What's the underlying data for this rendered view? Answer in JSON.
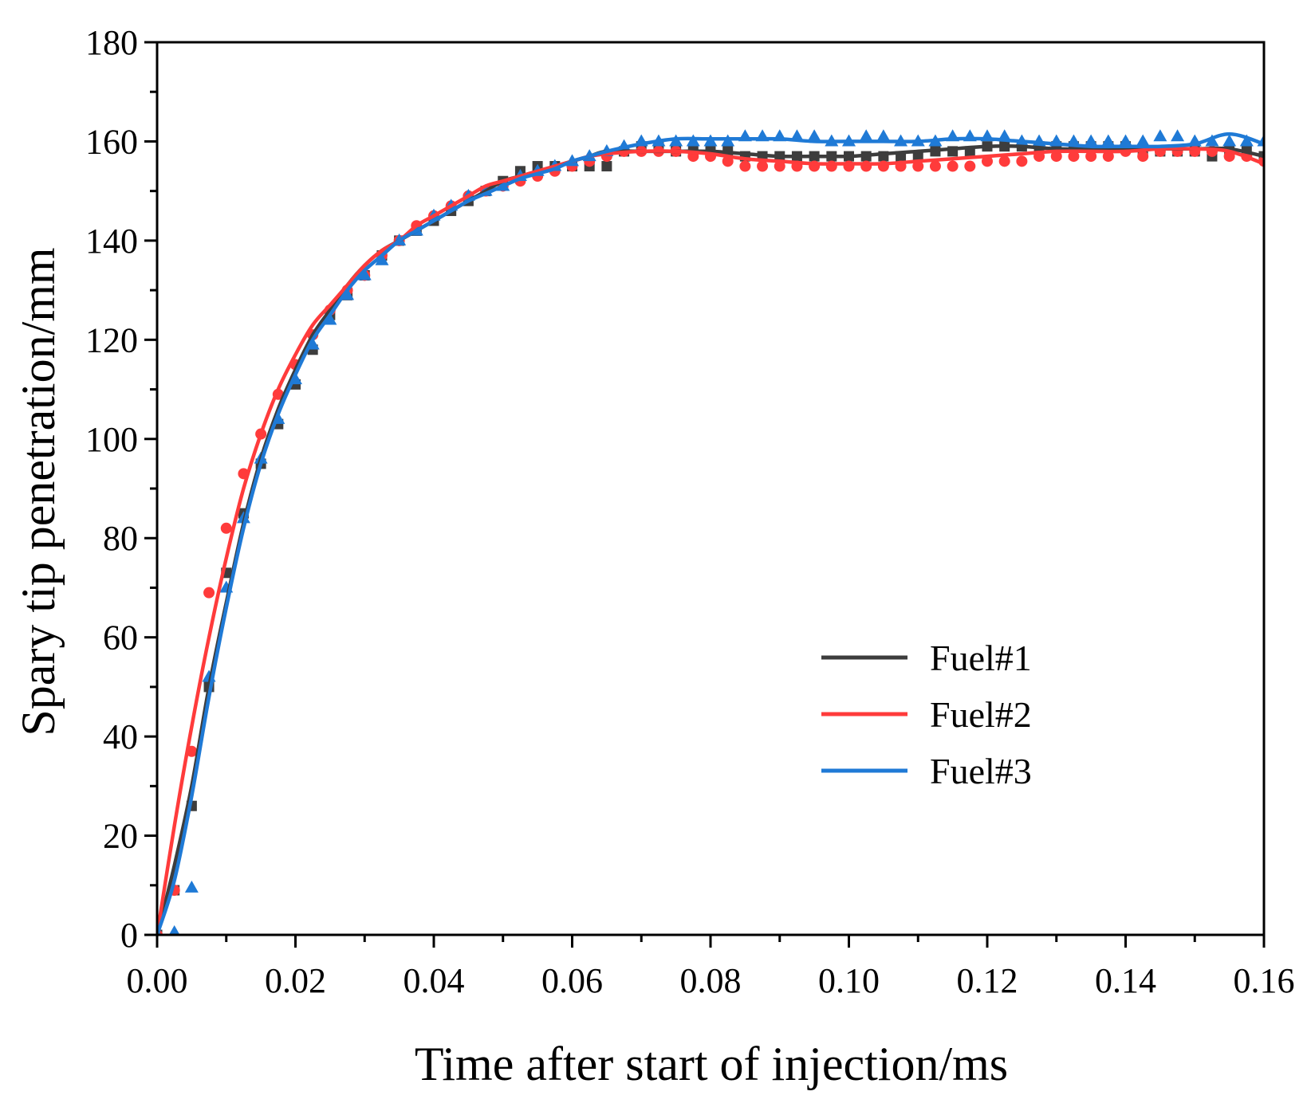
{
  "chart_data": {
    "type": "line",
    "title": "",
    "xlabel": "Time after start of injection/ms",
    "ylabel": "Spary tip penetration/mm",
    "xlim": [
      0,
      0.16
    ],
    "ylim": [
      0,
      180
    ],
    "xticks": [
      "0.00",
      "0.02",
      "0.04",
      "0.06",
      "0.08",
      "0.10",
      "0.12",
      "0.14",
      "0.16"
    ],
    "yticks": [
      "0",
      "20",
      "40",
      "60",
      "80",
      "100",
      "120",
      "140",
      "160",
      "180"
    ],
    "grid": false,
    "legend_position": "center-right",
    "series": [
      {
        "name": "Fuel#1",
        "color": "#3d3d3d",
        "marker": "square",
        "fit_x": [
          0,
          0.0025,
          0.005,
          0.0075,
          0.01,
          0.0125,
          0.015,
          0.0175,
          0.02,
          0.0225,
          0.025,
          0.0275,
          0.03,
          0.0325,
          0.035,
          0.0375,
          0.04,
          0.0425,
          0.045,
          0.0475,
          0.05,
          0.0525,
          0.055,
          0.0575,
          0.06,
          0.0625,
          0.065,
          0.07,
          0.075,
          0.08,
          0.085,
          0.09,
          0.095,
          0.1,
          0.105,
          0.11,
          0.115,
          0.12,
          0.125,
          0.13,
          0.135,
          0.14,
          0.145,
          0.15,
          0.155,
          0.16
        ],
        "fit_y": [
          0,
          14,
          30,
          50,
          67,
          83,
          96,
          106,
          114,
          121,
          126,
          131,
          135,
          138,
          140,
          142,
          144,
          146,
          148,
          150,
          152,
          153,
          154,
          155,
          156,
          157,
          158,
          158,
          158,
          158,
          157.5,
          157,
          157,
          157,
          157.5,
          158,
          158.5,
          159,
          159,
          158.5,
          158.5,
          158.5,
          158.5,
          158.5,
          158.5,
          157
        ],
        "marker_x": [
          0,
          0.0025,
          0.005,
          0.0075,
          0.01,
          0.0125,
          0.015,
          0.0175,
          0.02,
          0.0225,
          0.025,
          0.0275,
          0.03,
          0.0325,
          0.035,
          0.0375,
          0.04,
          0.0425,
          0.045,
          0.0475,
          0.05,
          0.0525,
          0.055,
          0.0575,
          0.06,
          0.0625,
          0.065,
          0.0675,
          0.07,
          0.0725,
          0.075,
          0.0775,
          0.08,
          0.0825,
          0.085,
          0.0875,
          0.09,
          0.0925,
          0.095,
          0.0975,
          0.1,
          0.1025,
          0.105,
          0.1075,
          0.11,
          0.1125,
          0.115,
          0.1175,
          0.12,
          0.1225,
          0.125,
          0.1275,
          0.13,
          0.1325,
          0.135,
          0.1375,
          0.14,
          0.1425,
          0.145,
          0.1475,
          0.15,
          0.1525,
          0.155,
          0.1575,
          0.16
        ],
        "marker_y": [
          0,
          9,
          26,
          50,
          73,
          85,
          95,
          103,
          111,
          118,
          125,
          129,
          133,
          137,
          140,
          142,
          144,
          146,
          148,
          150,
          152,
          154,
          155,
          155,
          155,
          155,
          155,
          158,
          159,
          159,
          158,
          158,
          158,
          158,
          157,
          157,
          157,
          157,
          157,
          157,
          157,
          157,
          157,
          157,
          157,
          158,
          158,
          158,
          159,
          159,
          159,
          159,
          159,
          159,
          159,
          159,
          159,
          158,
          158,
          158,
          158,
          157,
          158,
          158,
          157
        ]
      },
      {
        "name": "Fuel#2",
        "color": "#ff3b3b",
        "marker": "circle",
        "fit_x": [
          0,
          0.0025,
          0.005,
          0.0075,
          0.01,
          0.0125,
          0.015,
          0.0175,
          0.02,
          0.0225,
          0.025,
          0.0275,
          0.03,
          0.0325,
          0.035,
          0.0375,
          0.04,
          0.0425,
          0.045,
          0.0475,
          0.05,
          0.0525,
          0.055,
          0.0575,
          0.06,
          0.0625,
          0.065,
          0.07,
          0.075,
          0.08,
          0.085,
          0.09,
          0.095,
          0.1,
          0.105,
          0.11,
          0.115,
          0.12,
          0.125,
          0.13,
          0.135,
          0.14,
          0.145,
          0.15,
          0.155,
          0.16
        ],
        "fit_y": [
          0,
          22,
          42,
          60,
          76,
          90,
          101,
          110,
          117,
          123,
          127,
          131,
          135,
          138,
          140,
          143,
          145,
          147,
          149,
          151,
          152,
          153,
          154,
          155,
          156,
          157,
          157.5,
          158,
          158,
          157.5,
          156.5,
          156,
          155.5,
          155.5,
          155.5,
          156,
          156.5,
          157,
          157.5,
          158,
          158,
          158,
          158.5,
          158.5,
          158,
          155.5
        ],
        "marker_x": [
          0,
          0.0025,
          0.005,
          0.0075,
          0.01,
          0.0125,
          0.015,
          0.0175,
          0.02,
          0.0225,
          0.025,
          0.0275,
          0.03,
          0.0325,
          0.035,
          0.0375,
          0.04,
          0.0425,
          0.045,
          0.0475,
          0.05,
          0.0525,
          0.055,
          0.0575,
          0.06,
          0.0625,
          0.065,
          0.0675,
          0.07,
          0.0725,
          0.075,
          0.0775,
          0.08,
          0.0825,
          0.085,
          0.0875,
          0.09,
          0.0925,
          0.095,
          0.0975,
          0.1,
          0.1025,
          0.105,
          0.1075,
          0.11,
          0.1125,
          0.115,
          0.1175,
          0.12,
          0.1225,
          0.125,
          0.1275,
          0.13,
          0.1325,
          0.135,
          0.1375,
          0.14,
          0.1425,
          0.145,
          0.1475,
          0.15,
          0.1525,
          0.155,
          0.1575,
          0.16
        ],
        "marker_y": [
          0,
          9,
          37,
          69,
          82,
          93,
          101,
          109,
          115,
          121,
          126,
          130,
          133,
          137,
          140,
          143,
          145,
          147,
          149,
          150,
          151,
          152,
          153,
          154,
          155,
          156,
          157,
          158,
          158,
          158,
          158,
          157,
          157,
          156,
          155,
          155,
          155,
          155,
          155,
          155,
          155,
          155,
          155,
          155,
          155,
          155,
          155,
          155,
          156,
          156,
          156,
          157,
          157,
          157,
          157,
          157,
          158,
          157,
          158,
          158,
          158,
          158,
          157,
          157,
          156
        ]
      },
      {
        "name": "Fuel#3",
        "color": "#1f7ad6",
        "marker": "triangle",
        "fit_x": [
          0,
          0.0025,
          0.005,
          0.0075,
          0.01,
          0.0125,
          0.015,
          0.0175,
          0.02,
          0.0225,
          0.025,
          0.0275,
          0.03,
          0.0325,
          0.035,
          0.0375,
          0.04,
          0.0425,
          0.045,
          0.0475,
          0.05,
          0.0525,
          0.055,
          0.0575,
          0.06,
          0.0625,
          0.065,
          0.07,
          0.075,
          0.08,
          0.085,
          0.09,
          0.095,
          0.1,
          0.105,
          0.11,
          0.115,
          0.12,
          0.125,
          0.13,
          0.135,
          0.14,
          0.145,
          0.15,
          0.155,
          0.16
        ],
        "fit_y": [
          0,
          11,
          28,
          48,
          66,
          82,
          95,
          105,
          113,
          120,
          125,
          130,
          134,
          137,
          140,
          142,
          144,
          146,
          148,
          149.5,
          151,
          152.5,
          153.5,
          154.5,
          156,
          157,
          158,
          159.5,
          160.5,
          160.5,
          160.5,
          160.5,
          160,
          160,
          160,
          160,
          160.5,
          160.5,
          160,
          159.5,
          159,
          159,
          159,
          159.5,
          161.5,
          159.5
        ],
        "marker_x": [
          0,
          0.0025,
          0.005,
          0.0075,
          0.01,
          0.0125,
          0.015,
          0.0175,
          0.02,
          0.0225,
          0.025,
          0.0275,
          0.03,
          0.0325,
          0.035,
          0.0375,
          0.04,
          0.0425,
          0.045,
          0.0475,
          0.05,
          0.0525,
          0.055,
          0.0575,
          0.06,
          0.0625,
          0.065,
          0.0675,
          0.07,
          0.0725,
          0.075,
          0.0775,
          0.08,
          0.0825,
          0.085,
          0.0875,
          0.09,
          0.0925,
          0.095,
          0.0975,
          0.1,
          0.1025,
          0.105,
          0.1075,
          0.11,
          0.1125,
          0.115,
          0.1175,
          0.12,
          0.1225,
          0.125,
          0.1275,
          0.13,
          0.1325,
          0.135,
          0.1375,
          0.14,
          0.1425,
          0.145,
          0.1475,
          0.15,
          0.1525,
          0.155,
          0.1575,
          0.16
        ],
        "marker_y": [
          0,
          0.5,
          9.5,
          52,
          70,
          84,
          96,
          104,
          112,
          119,
          124,
          129,
          133,
          136,
          140,
          142,
          145,
          147,
          149,
          150,
          151,
          153,
          154,
          155,
          156,
          157,
          158,
          159,
          160,
          160,
          160,
          160,
          160,
          160,
          161,
          161,
          161,
          161,
          161,
          160,
          160,
          161,
          161,
          160,
          160,
          160,
          161,
          161,
          161,
          161,
          160,
          160,
          160,
          160,
          160,
          160,
          160,
          160,
          161,
          161,
          160,
          160,
          160,
          160,
          160
        ]
      }
    ]
  }
}
